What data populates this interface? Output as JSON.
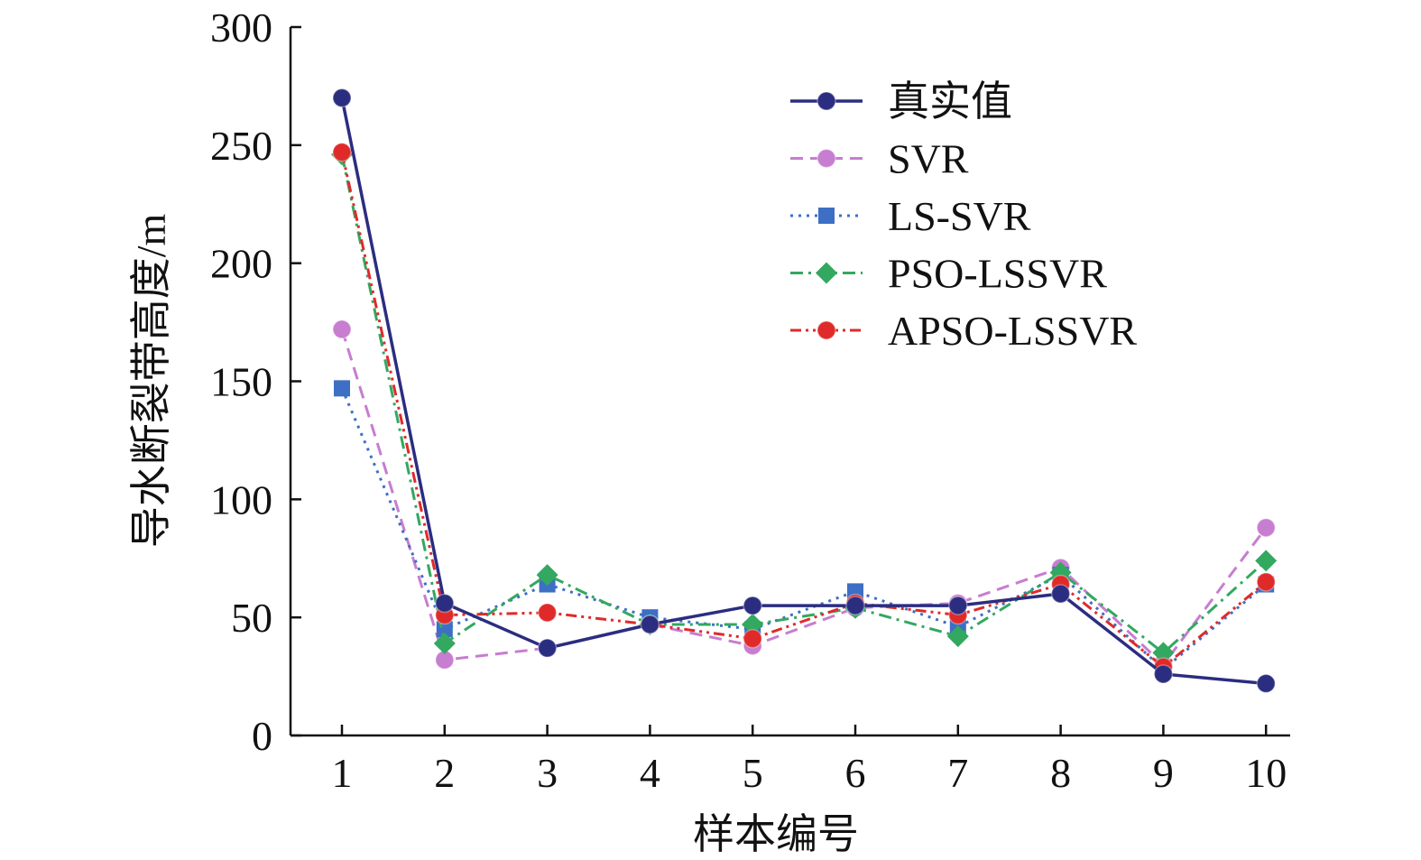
{
  "chart_data": {
    "type": "line",
    "title": "",
    "xlabel": "样本编号",
    "ylabel": "导水断裂带高度/m",
    "categories": [
      "1",
      "2",
      "3",
      "4",
      "5",
      "6",
      "7",
      "8",
      "9",
      "10"
    ],
    "yticks": [
      "0",
      "50",
      "100",
      "150",
      "200",
      "250",
      "300"
    ],
    "ylim": [
      0,
      300
    ],
    "grid": false,
    "legend_position": "top-right",
    "series": [
      {
        "name": "真实值",
        "color": "#2b2d80",
        "marker": "circle",
        "dash": "solid",
        "values": [
          270,
          56,
          37,
          47,
          55,
          55,
          55,
          60,
          26,
          22
        ]
      },
      {
        "name": "SVR",
        "color": "#c77dd0",
        "marker": "circle",
        "dash": "dash",
        "values": [
          172,
          32,
          37,
          47,
          38,
          54,
          56,
          71,
          30,
          88
        ]
      },
      {
        "name": "LS-SVR",
        "color": "#3d6fc4",
        "marker": "square",
        "dash": "dot",
        "values": [
          147,
          45,
          64,
          50,
          45,
          61,
          46,
          68,
          28,
          64
        ]
      },
      {
        "name": "PSO-LSSVR",
        "color": "#33a860",
        "marker": "diamond",
        "dash": "dashdot",
        "values": [
          246,
          39,
          68,
          47,
          47,
          54,
          42,
          69,
          35,
          74
        ]
      },
      {
        "name": "APSO-LSSVR",
        "color": "#e02a2a",
        "marker": "circle",
        "dash": "dashdotdot",
        "values": [
          247,
          51,
          52,
          47,
          41,
          56,
          51,
          64,
          29,
          65
        ]
      }
    ]
  }
}
